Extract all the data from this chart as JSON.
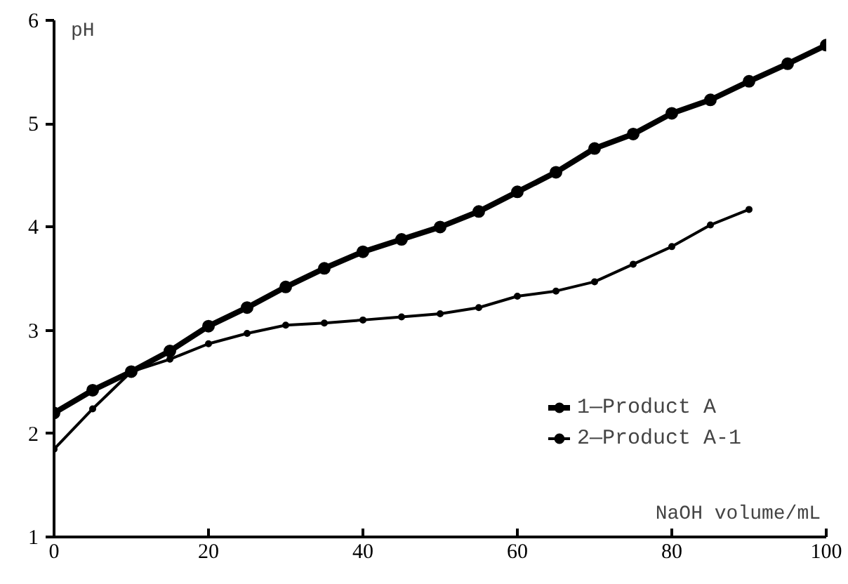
{
  "chart_data": {
    "type": "line",
    "xlabel": "NaOH volume/mL",
    "ylabel": "pH",
    "x": [
      0,
      5,
      10,
      15,
      20,
      25,
      30,
      35,
      40,
      45,
      50,
      55,
      60,
      65,
      70,
      75,
      80,
      85,
      90,
      95,
      100
    ],
    "series": [
      {
        "name": "1—Product A",
        "color": "#000000",
        "values": [
          2.2,
          2.42,
          2.6,
          2.8,
          3.04,
          3.22,
          3.42,
          3.6,
          3.76,
          3.88,
          4.0,
          4.15,
          4.34,
          4.53,
          4.76,
          4.9,
          5.1,
          5.23,
          5.41,
          5.58,
          5.76
        ]
      },
      {
        "name": "2—Product A-1",
        "color": "#000000",
        "values": [
          1.85,
          2.24,
          2.6,
          2.72,
          2.87,
          2.97,
          3.05,
          3.07,
          3.1,
          3.13,
          3.16,
          3.22,
          3.33,
          3.38,
          3.47,
          3.64,
          3.81,
          4.02,
          4.17,
          null,
          null
        ]
      }
    ],
    "xlim": [
      0,
      100
    ],
    "ylim": [
      1,
      6
    ],
    "xticks": [
      0,
      20,
      40,
      60,
      80,
      100
    ],
    "yticks": [
      1,
      2,
      3,
      4,
      5,
      6
    ],
    "grid": false,
    "legend": "bottom right",
    "marker": "circle",
    "line_style": "solid"
  }
}
